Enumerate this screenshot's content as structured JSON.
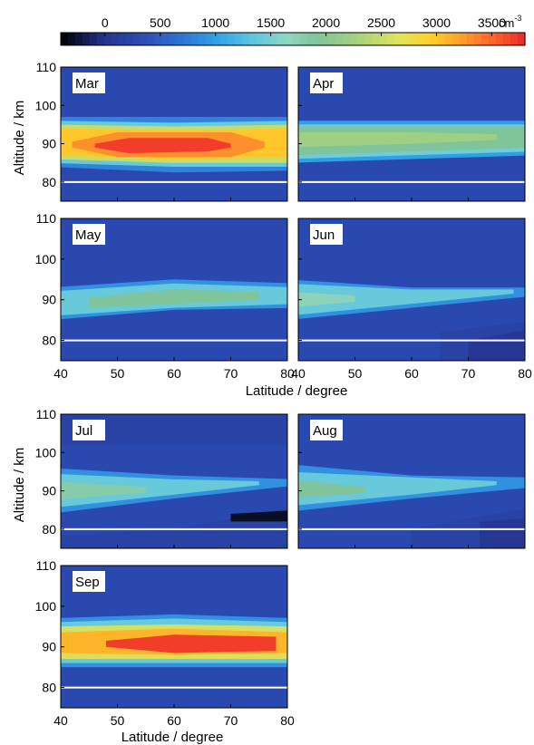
{
  "colorbar": {
    "tick_labels": [
      "0",
      "500",
      "1000",
      "1500",
      "2000",
      "2500",
      "3000",
      "3500"
    ],
    "tick_values": [
      0,
      500,
      1000,
      1500,
      2000,
      2500,
      3000,
      3500
    ],
    "range": [
      -400,
      3800
    ],
    "unit_base": "cm",
    "unit_exp": "-3",
    "colors": [
      "#000000",
      "#111a4a",
      "#25348e",
      "#2a49b0",
      "#2f6dd1",
      "#30a0e6",
      "#60c6e0",
      "#90d7c2",
      "#7fc49a",
      "#a8d27a",
      "#e0e45a",
      "#ffd02a",
      "#ff9a2a",
      "#ff5a2a",
      "#e82a2a"
    ],
    "color_stops": [
      -400,
      -200,
      0,
      300,
      650,
      1000,
      1350,
      1650,
      1900,
      2300,
      2650,
      2950,
      3250,
      3550,
      3800
    ]
  },
  "axes": {
    "ylabel": "Altitude / km",
    "xlabel": "Latitude / degree",
    "x_ticks": [
      "40",
      "50",
      "60",
      "70",
      "80"
    ],
    "y_ticks": [
      "80",
      "90",
      "100",
      "110"
    ]
  },
  "chart_data": {
    "type": "heatmap",
    "x_range": [
      40,
      80
    ],
    "y_range": [
      75,
      110
    ],
    "reference_line_altitude": 80,
    "background_value": 300,
    "panels": [
      {
        "name": "Mar",
        "layers": [
          {
            "value": 800,
            "lower": [
              [
                40,
                84
              ],
              [
                60,
                82.5
              ],
              [
                80,
                83
              ]
            ],
            "upper": [
              [
                40,
                97
              ],
              [
                60,
                97
              ],
              [
                80,
                97
              ]
            ]
          },
          {
            "value": 1400,
            "lower": [
              [
                40,
                85
              ],
              [
                60,
                84
              ],
              [
                80,
                84
              ]
            ],
            "upper": [
              [
                40,
                96
              ],
              [
                60,
                95.5
              ],
              [
                80,
                96
              ]
            ]
          },
          {
            "value": 2500,
            "lower": [
              [
                40,
                86
              ],
              [
                60,
                85
              ],
              [
                80,
                85
              ]
            ],
            "upper": [
              [
                40,
                95
              ],
              [
                60,
                94.5
              ],
              [
                80,
                95
              ]
            ]
          },
          {
            "value": 3000,
            "lower": [
              [
                40,
                87
              ],
              [
                60,
                86
              ],
              [
                80,
                86.5
              ]
            ],
            "upper": [
              [
                40,
                94
              ],
              [
                60,
                93.5
              ],
              [
                80,
                94
              ]
            ]
          },
          {
            "value": 3300,
            "lower": [
              [
                42,
                89
              ],
              [
                50,
                86.5
              ],
              [
                70,
                86.5
              ],
              [
                76,
                89
              ]
            ],
            "upper": [
              [
                42,
                90.5
              ],
              [
                50,
                93
              ],
              [
                70,
                93
              ],
              [
                76,
                90.5
              ]
            ]
          },
          {
            "value": 3700,
            "lower": [
              [
                46,
                89
              ],
              [
                52,
                87.5
              ],
              [
                66,
                88
              ],
              [
                70,
                89
              ]
            ],
            "upper": [
              [
                46,
                90
              ],
              [
                52,
                91.5
              ],
              [
                66,
                91.5
              ],
              [
                70,
                90
              ]
            ]
          }
        ]
      },
      {
        "name": "Apr",
        "layers": [
          {
            "value": 1000,
            "lower": [
              [
                40,
                85
              ],
              [
                60,
                86
              ],
              [
                80,
                87
              ]
            ],
            "upper": [
              [
                40,
                96
              ],
              [
                60,
                96
              ],
              [
                80,
                96
              ]
            ]
          },
          {
            "value": 1450,
            "lower": [
              [
                40,
                86
              ],
              [
                60,
                87
              ],
              [
                80,
                88
              ]
            ],
            "upper": [
              [
                40,
                95
              ],
              [
                60,
                95
              ],
              [
                80,
                95
              ]
            ]
          },
          {
            "value": 1900,
            "lower": [
              [
                40,
                87
              ],
              [
                60,
                88
              ],
              [
                80,
                89
              ]
            ],
            "upper": [
              [
                40,
                94.5
              ],
              [
                60,
                94.5
              ],
              [
                80,
                94.5
              ]
            ]
          },
          {
            "value": 2200,
            "lower": [
              [
                40,
                89
              ],
              [
                60,
                90
              ],
              [
                75,
                91
              ]
            ],
            "upper": [
              [
                40,
                93
              ],
              [
                60,
                93
              ],
              [
                75,
                92.5
              ]
            ]
          }
        ]
      },
      {
        "name": "May",
        "layers": [
          {
            "value": 900,
            "lower": [
              [
                40,
                85
              ],
              [
                60,
                87.5
              ],
              [
                80,
                88
              ]
            ],
            "upper": [
              [
                40,
                93
              ],
              [
                60,
                95
              ],
              [
                80,
                94
              ]
            ]
          },
          {
            "value": 1400,
            "lower": [
              [
                40,
                86
              ],
              [
                60,
                88
              ],
              [
                80,
                89
              ]
            ],
            "upper": [
              [
                40,
                92
              ],
              [
                60,
                94
              ],
              [
                80,
                93
              ]
            ]
          },
          {
            "value": 1900,
            "lower": [
              [
                45,
                88
              ],
              [
                60,
                89
              ],
              [
                75,
                90
              ]
            ],
            "upper": [
              [
                45,
                90.5
              ],
              [
                60,
                92.5
              ],
              [
                75,
                92
              ]
            ]
          }
        ]
      },
      {
        "name": "Jun",
        "layers": [
          {
            "value": 200,
            "lower": [
              [
                65,
                75
              ],
              [
                80,
                75
              ]
            ],
            "upper": [
              [
                65,
                82
              ],
              [
                80,
                85
              ]
            ]
          },
          {
            "value": 50,
            "lower": [
              [
                70,
                75
              ],
              [
                80,
                75
              ]
            ],
            "upper": [
              [
                70,
                80
              ],
              [
                80,
                83
              ]
            ]
          },
          {
            "value": 900,
            "lower": [
              [
                40,
                85
              ],
              [
                60,
                88
              ],
              [
                80,
                91
              ]
            ],
            "upper": [
              [
                40,
                95
              ],
              [
                60,
                93
              ],
              [
                80,
                93
              ]
            ]
          },
          {
            "value": 1400,
            "lower": [
              [
                40,
                86
              ],
              [
                60,
                89
              ],
              [
                78,
                91.5
              ]
            ],
            "upper": [
              [
                40,
                94
              ],
              [
                60,
                92.5
              ],
              [
                78,
                92.5
              ]
            ]
          },
          {
            "value": 1700,
            "lower": [
              [
                40,
                88
              ],
              [
                50,
                89.5
              ]
            ],
            "upper": [
              [
                40,
                92
              ],
              [
                50,
                91
              ]
            ]
          }
        ]
      },
      {
        "name": "Jul",
        "layers": [
          {
            "value": 200,
            "lower": [
              [
                40,
                102
              ],
              [
                80,
                102
              ]
            ],
            "upper": [
              [
                40,
                110
              ],
              [
                80,
                110
              ]
            ]
          },
          {
            "value": 200,
            "lower": [
              [
                40,
                75
              ],
              [
                80,
                75
              ]
            ],
            "upper": [
              [
                40,
                78
              ],
              [
                60,
                80
              ],
              [
                80,
                86
              ]
            ]
          },
          {
            "value": -300,
            "lower": [
              [
                70,
                82
              ],
              [
                80,
                82
              ]
            ],
            "upper": [
              [
                70,
                84
              ],
              [
                80,
                85
              ]
            ]
          },
          {
            "value": 900,
            "lower": [
              [
                40,
                84
              ],
              [
                60,
                88
              ],
              [
                80,
                91.5
              ]
            ],
            "upper": [
              [
                40,
                96
              ],
              [
                60,
                94
              ],
              [
                80,
                93
              ]
            ]
          },
          {
            "value": 1400,
            "lower": [
              [
                40,
                85.5
              ],
              [
                60,
                89
              ],
              [
                75,
                91.5
              ]
            ],
            "upper": [
              [
                40,
                94.5
              ],
              [
                60,
                93
              ],
              [
                75,
                92.5
              ]
            ]
          },
          {
            "value": 1800,
            "lower": [
              [
                40,
                87.5
              ],
              [
                55,
                89.5
              ]
            ],
            "upper": [
              [
                40,
                92.5
              ],
              [
                55,
                91
              ]
            ]
          }
        ]
      },
      {
        "name": "Aug",
        "layers": [
          {
            "value": 200,
            "lower": [
              [
                60,
                75
              ],
              [
                80,
                75
              ]
            ],
            "upper": [
              [
                60,
                80
              ],
              [
                80,
                86
              ]
            ]
          },
          {
            "value": 50,
            "lower": [
              [
                72,
                75
              ],
              [
                80,
                75
              ]
            ],
            "upper": [
              [
                72,
                82
              ],
              [
                80,
                83
              ]
            ]
          },
          {
            "value": 900,
            "lower": [
              [
                40,
                84.5
              ],
              [
                60,
                88
              ],
              [
                80,
                91
              ]
            ],
            "upper": [
              [
                40,
                97
              ],
              [
                60,
                94
              ],
              [
                80,
                93.5
              ]
            ]
          },
          {
            "value": 1400,
            "lower": [
              [
                40,
                86
              ],
              [
                60,
                89
              ],
              [
                75,
                91.5
              ]
            ],
            "upper": [
              [
                40,
                95
              ],
              [
                60,
                93.5
              ],
              [
                75,
                92.5
              ]
            ]
          },
          {
            "value": 1900,
            "lower": [
              [
                40,
                88
              ],
              [
                52,
                89.5
              ]
            ],
            "upper": [
              [
                40,
                93
              ],
              [
                52,
                91
              ]
            ]
          }
        ]
      },
      {
        "name": "Sep",
        "layers": [
          {
            "value": 900,
            "lower": [
              [
                40,
                85
              ],
              [
                60,
                85
              ],
              [
                80,
                85
              ]
            ],
            "upper": [
              [
                40,
                97
              ],
              [
                60,
                98
              ],
              [
                80,
                97
              ]
            ]
          },
          {
            "value": 1400,
            "lower": [
              [
                40,
                86
              ],
              [
                60,
                86
              ],
              [
                80,
                86
              ]
            ],
            "upper": [
              [
                40,
                96
              ],
              [
                60,
                97
              ],
              [
                80,
                96
              ]
            ]
          },
          {
            "value": 2600,
            "lower": [
              [
                40,
                87
              ],
              [
                60,
                87
              ],
              [
                80,
                87
              ]
            ],
            "upper": [
              [
                40,
                95
              ],
              [
                60,
                95.5
              ],
              [
                80,
                95
              ]
            ]
          },
          {
            "value": 3100,
            "lower": [
              [
                40,
                88.5
              ],
              [
                60,
                88
              ],
              [
                80,
                88.5
              ]
            ],
            "upper": [
              [
                40,
                93.5
              ],
              [
                60,
                94.5
              ],
              [
                80,
                93.5
              ]
            ]
          },
          {
            "value": 3700,
            "lower": [
              [
                48,
                90
              ],
              [
                60,
                88.5
              ],
              [
                78,
                89
              ]
            ],
            "upper": [
              [
                48,
                91.5
              ],
              [
                60,
                93
              ],
              [
                78,
                92.5
              ]
            ]
          }
        ]
      }
    ]
  }
}
